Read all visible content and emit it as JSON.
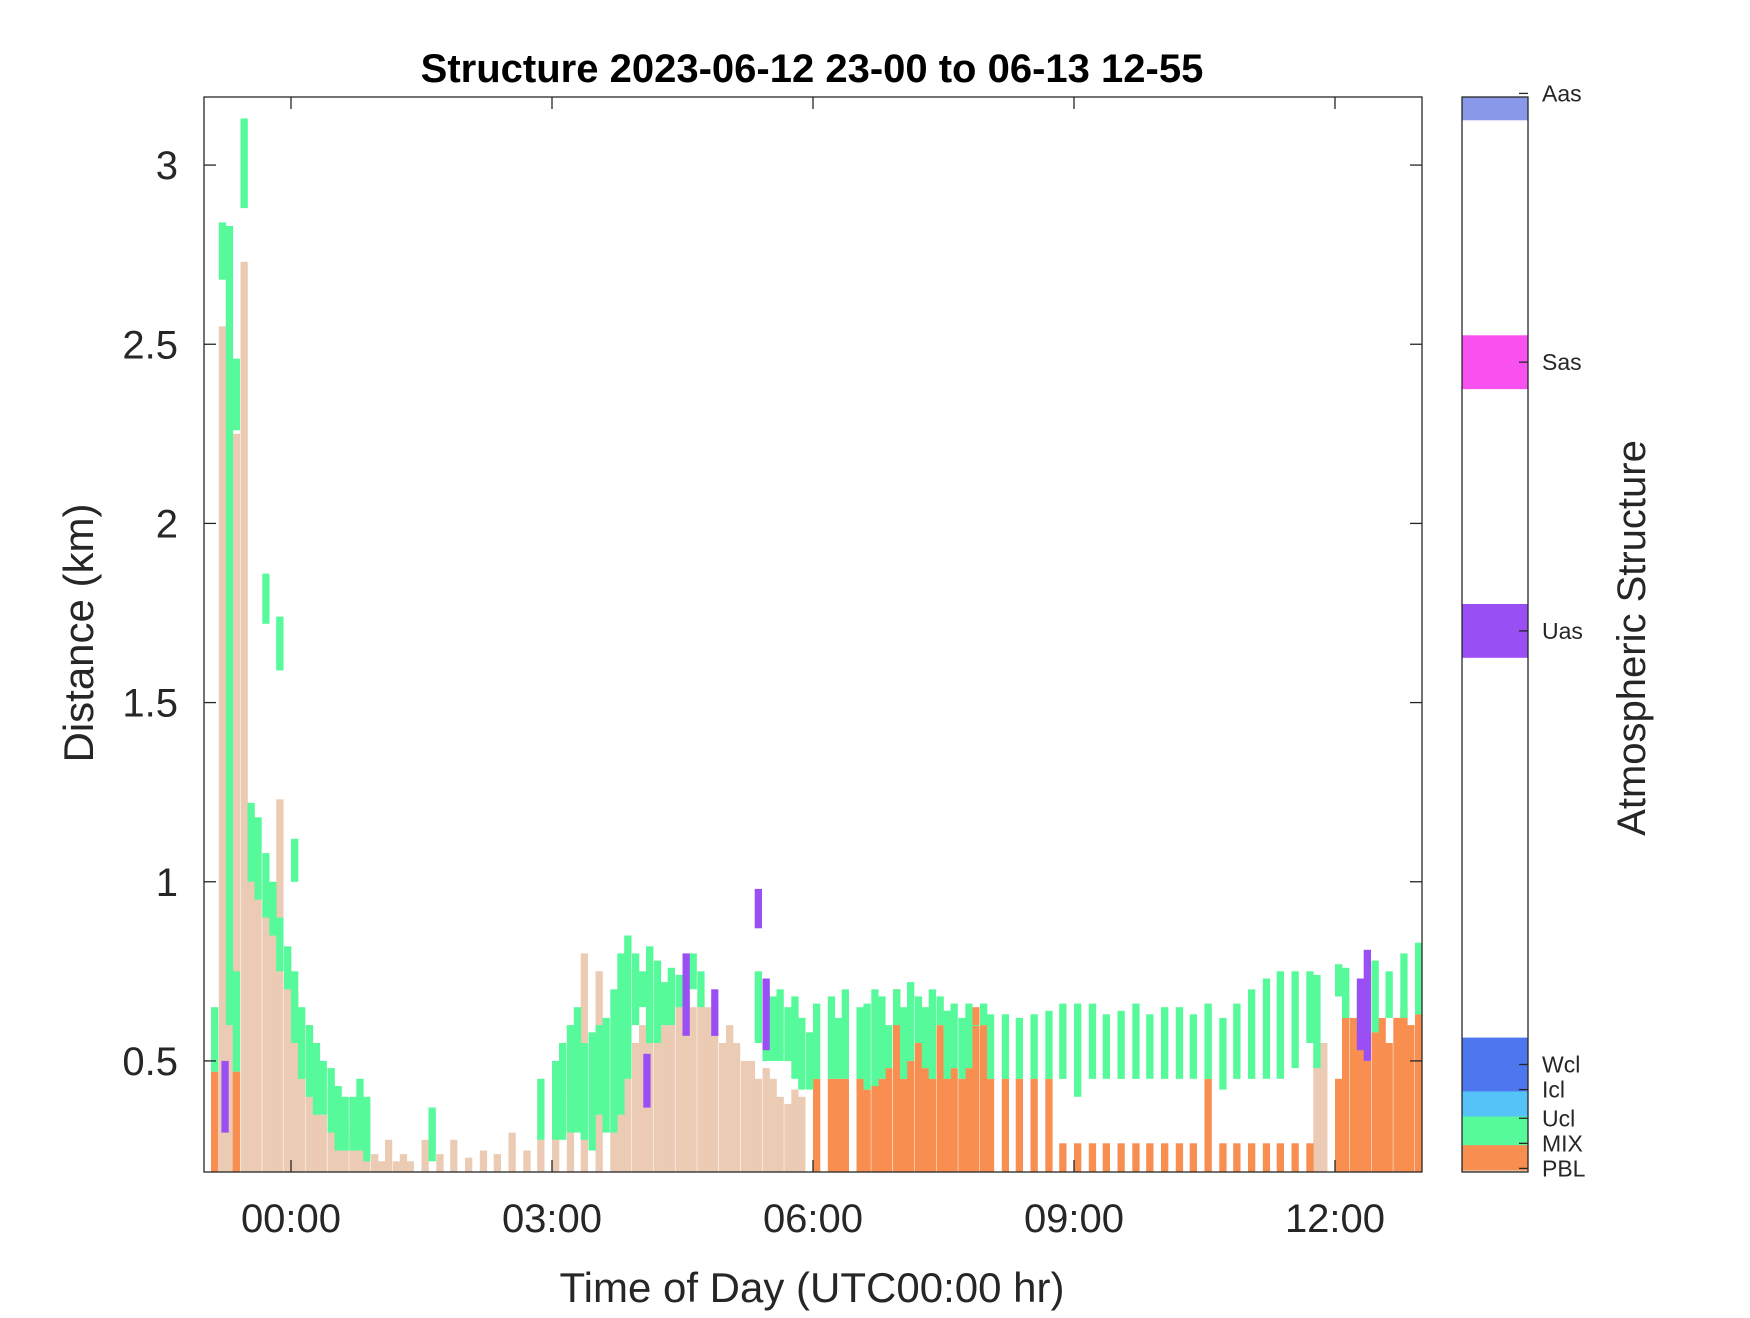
{
  "chart_data": {
    "type": "heatmap",
    "title": "Structure 2023-06-12 23-00 to 06-13 12-55",
    "xlabel": "Time of Day (UTC00:00 hr)",
    "ylabel": "Distance (km)",
    "colorbar_label": "Atmospheric Structure",
    "xlim": [
      -1.0,
      13.0
    ],
    "ylim": [
      0.19,
      3.19
    ],
    "x_unit": "hours from 00:00 UTC 2023-06-13",
    "x_ticks": [
      {
        "value": 0,
        "label": "00:00"
      },
      {
        "value": 3,
        "label": "03:00"
      },
      {
        "value": 6,
        "label": "06:00"
      },
      {
        "value": 9,
        "label": "09:00"
      },
      {
        "value": 12,
        "label": "12:00"
      }
    ],
    "y_ticks": [
      {
        "value": 0.5,
        "label": "0.5"
      },
      {
        "value": 1,
        "label": "1"
      },
      {
        "value": 1.5,
        "label": "1.5"
      },
      {
        "value": 2,
        "label": "2"
      },
      {
        "value": 2.5,
        "label": "2.5"
      },
      {
        "value": 3,
        "label": "3"
      }
    ],
    "categories": [
      {
        "code": "PBL",
        "color": "#ebcbb4",
        "level": 0.2
      },
      {
        "code": "MIX",
        "color": "#f98e51",
        "level": 0.27
      },
      {
        "code": "Ucl",
        "color": "#57fa9b",
        "level": 0.34
      },
      {
        "code": "Icl",
        "color": "#55c3f7",
        "level": 0.42
      },
      {
        "code": "Wcl",
        "color": "#4e76ee",
        "level": 0.49
      },
      {
        "code": "Uas",
        "color": "#9a4ff5",
        "level": 1.7
      },
      {
        "code": "Sas",
        "color": "#f851ef",
        "level": 2.45
      },
      {
        "code": "Aas",
        "color": "#8a98ea",
        "level": 3.2
      }
    ],
    "grid": false,
    "series": [
      {
        "name": "PBL",
        "x": [
          -0.92,
          -0.83,
          -0.75,
          -0.67,
          -0.58,
          -0.5,
          -0.42,
          -0.33,
          -0.25,
          -0.17,
          -0.08,
          0.0,
          0.08,
          0.17,
          0.25,
          0.33,
          0.42,
          0.5,
          0.58,
          0.67,
          0.75,
          0.83,
          0.92,
          1.0,
          1.08,
          1.17,
          1.25,
          1.33,
          1.5,
          1.67,
          1.83,
          2.0,
          2.17,
          2.33,
          2.5,
          2.67,
          2.83,
          3.0,
          3.17,
          3.33,
          3.5,
          3.67,
          3.75,
          3.83,
          3.92,
          4.0,
          4.08,
          4.17,
          4.25,
          4.33,
          4.42,
          4.5,
          4.58,
          4.67,
          4.75,
          4.83,
          4.92,
          5.0,
          5.08,
          5.17,
          5.25,
          5.33,
          5.42,
          5.5,
          5.58,
          5.67,
          5.75,
          5.83,
          11.75,
          11.83
        ],
        "bottom": [
          0.19,
          0.19,
          0.19,
          0.19,
          0.19,
          0.19,
          0.19,
          0.19,
          0.19,
          0.19,
          0.19,
          0.19,
          0.19,
          0.19,
          0.19,
          0.19,
          0.19,
          0.19,
          0.19,
          0.19,
          0.19,
          0.19,
          0.19,
          0.19,
          0.19,
          0.19,
          0.19,
          0.19,
          0.19,
          0.19,
          0.19,
          0.19,
          0.19,
          0.19,
          0.19,
          0.19,
          0.19,
          0.19,
          0.19,
          0.19,
          0.19,
          0.19,
          0.19,
          0.19,
          0.19,
          0.19,
          0.19,
          0.19,
          0.19,
          0.19,
          0.19,
          0.19,
          0.19,
          0.19,
          0.19,
          0.19,
          0.19,
          0.19,
          0.19,
          0.19,
          0.19,
          0.19,
          0.19,
          0.19,
          0.19,
          0.19,
          0.19,
          0.19,
          0.19,
          0.19
        ],
        "top": [
          0.6,
          2.55,
          0.95,
          2.25,
          2.73,
          1.15,
          1.0,
          0.95,
          0.9,
          1.23,
          0.8,
          0.7,
          0.55,
          0.6,
          0.5,
          0.35,
          0.45,
          0.3,
          0.33,
          0.3,
          0.28,
          0.25,
          0.24,
          0.22,
          0.28,
          0.22,
          0.24,
          0.22,
          0.28,
          0.24,
          0.28,
          0.23,
          0.25,
          0.24,
          0.3,
          0.25,
          0.3,
          0.35,
          0.4,
          0.8,
          0.75,
          0.6,
          0.65,
          0.55,
          0.55,
          0.6,
          0.7,
          0.55,
          0.6,
          0.65,
          0.7,
          0.7,
          0.65,
          0.68,
          0.65,
          0.68,
          0.55,
          0.6,
          0.55,
          0.5,
          0.5,
          0.45,
          0.48,
          0.45,
          0.4,
          0.38,
          0.42,
          0.4,
          0.55,
          0.55
        ]
      },
      {
        "name": "MIX",
        "x": [
          -0.92,
          -0.67,
          6.0,
          6.17,
          6.25,
          6.33,
          6.5,
          6.58,
          6.67,
          6.75,
          6.83,
          6.92,
          7.0,
          7.08,
          7.17,
          7.25,
          7.33,
          7.42,
          7.5,
          7.58,
          7.67,
          7.75,
          7.83,
          7.92,
          8.0,
          8.17,
          8.33,
          8.5,
          8.67,
          8.83,
          9.0,
          9.17,
          9.33,
          9.5,
          9.67,
          9.83,
          10.0,
          10.17,
          10.33,
          10.5,
          10.67,
          10.83,
          11.0,
          11.17,
          11.33,
          11.5,
          11.67,
          12.0,
          12.08,
          12.17,
          12.25,
          12.33,
          12.42,
          12.5,
          12.58,
          12.67,
          12.75,
          12.83,
          12.92
        ],
        "bottom": [
          0.19,
          0.19,
          0.19,
          0.19,
          0.19,
          0.19,
          0.19,
          0.19,
          0.19,
          0.19,
          0.19,
          0.19,
          0.19,
          0.19,
          0.19,
          0.19,
          0.19,
          0.19,
          0.19,
          0.19,
          0.19,
          0.19,
          0.19,
          0.19,
          0.19,
          0.19,
          0.19,
          0.19,
          0.19,
          0.19,
          0.19,
          0.19,
          0.19,
          0.19,
          0.19,
          0.19,
          0.19,
          0.19,
          0.19,
          0.19,
          0.19,
          0.19,
          0.19,
          0.19,
          0.19,
          0.19,
          0.19,
          0.19,
          0.19,
          0.19,
          0.19,
          0.19,
          0.19,
          0.19,
          0.19,
          0.19,
          0.19,
          0.19,
          0.19
        ],
        "top": [
          0.47,
          0.47,
          0.45,
          0.45,
          0.45,
          0.45,
          0.45,
          0.42,
          0.43,
          0.45,
          0.48,
          0.7,
          0.45,
          0.5,
          0.55,
          0.48,
          0.45,
          0.6,
          0.45,
          0.48,
          0.45,
          0.48,
          0.65,
          0.6,
          0.45,
          0.45,
          0.45,
          0.45,
          0.45,
          0.27,
          0.27,
          0.27,
          0.27,
          0.27,
          0.27,
          0.27,
          0.27,
          0.27,
          0.27,
          0.45,
          0.27,
          0.27,
          0.27,
          0.27,
          0.27,
          0.27,
          0.27,
          0.45,
          0.68,
          0.62,
          0.58,
          0.5,
          0.58,
          0.62,
          0.55,
          0.62,
          0.65,
          0.6,
          0.63
        ]
      },
      {
        "name": "Ucl",
        "x": [
          -0.92,
          -0.75,
          -0.67,
          -0.58,
          -0.5,
          -0.42,
          -0.33,
          -0.25,
          -0.17,
          -0.08,
          0.0,
          0.08,
          0.17,
          0.25,
          0.33,
          0.42,
          0.5,
          0.58,
          0.67,
          0.75,
          0.83,
          1.58,
          2.83,
          3.0,
          3.08,
          3.17,
          3.25,
          3.33,
          3.42,
          3.5,
          3.58,
          3.67,
          3.75,
          3.83,
          3.92,
          4.0,
          4.08,
          4.17,
          4.25,
          4.33,
          4.42,
          4.58,
          4.67,
          5.33,
          5.42,
          5.5,
          5.58,
          5.67,
          5.75,
          5.83,
          5.92,
          6.0,
          6.17,
          6.25,
          6.33,
          6.5,
          6.58,
          6.67,
          6.75,
          6.83,
          6.92,
          7.0,
          7.08,
          7.17,
          7.25,
          7.33,
          7.42,
          7.5,
          7.58,
          7.67,
          7.75,
          7.83,
          7.92,
          8.0,
          8.17,
          8.33,
          8.5,
          8.67,
          8.83,
          9.0,
          9.17,
          9.33,
          9.5,
          9.67,
          9.83,
          10.0,
          10.17,
          10.33,
          10.5,
          10.67,
          10.83,
          11.0,
          11.17,
          11.33,
          11.5,
          11.67,
          11.75,
          12.0,
          12.08,
          12.25,
          12.42,
          12.58,
          12.75,
          12.92
        ],
        "bottom": [
          0.47,
          0.6,
          0.47,
          2.88,
          1.0,
          0.95,
          0.9,
          0.85,
          0.75,
          0.7,
          0.55,
          0.45,
          0.4,
          0.35,
          0.35,
          0.3,
          0.25,
          0.25,
          0.25,
          0.25,
          0.22,
          0.22,
          0.28,
          0.28,
          0.28,
          0.3,
          0.3,
          0.28,
          0.25,
          0.35,
          0.3,
          0.3,
          0.35,
          0.45,
          0.6,
          0.65,
          0.55,
          0.55,
          0.6,
          0.6,
          0.65,
          0.7,
          0.65,
          0.55,
          0.5,
          0.5,
          0.5,
          0.5,
          0.45,
          0.42,
          0.42,
          0.45,
          0.45,
          0.45,
          0.45,
          0.45,
          0.42,
          0.43,
          0.45,
          0.48,
          0.6,
          0.45,
          0.5,
          0.55,
          0.48,
          0.45,
          0.6,
          0.45,
          0.48,
          0.45,
          0.48,
          0.65,
          0.6,
          0.45,
          0.45,
          0.45,
          0.45,
          0.45,
          0.45,
          0.4,
          0.45,
          0.45,
          0.45,
          0.45,
          0.45,
          0.45,
          0.45,
          0.45,
          0.45,
          0.42,
          0.45,
          0.45,
          0.45,
          0.45,
          0.48,
          0.55,
          0.48,
          0.68,
          0.62,
          0.58,
          0.58,
          0.62,
          0.62,
          0.63
        ],
        "top": [
          0.65,
          2.83,
          0.75,
          3.13,
          1.22,
          1.18,
          1.08,
          1.0,
          0.9,
          0.82,
          0.75,
          0.65,
          0.6,
          0.55,
          0.5,
          0.48,
          0.43,
          0.4,
          0.4,
          0.45,
          0.4,
          0.37,
          0.45,
          0.5,
          0.55,
          0.6,
          0.65,
          0.55,
          0.58,
          0.6,
          0.62,
          0.7,
          0.8,
          0.85,
          0.8,
          0.75,
          0.82,
          0.78,
          0.72,
          0.76,
          0.74,
          0.8,
          0.75,
          0.75,
          0.7,
          0.68,
          0.7,
          0.65,
          0.68,
          0.62,
          0.58,
          0.66,
          0.68,
          0.62,
          0.7,
          0.65,
          0.66,
          0.7,
          0.68,
          0.6,
          0.7,
          0.65,
          0.72,
          0.68,
          0.65,
          0.7,
          0.68,
          0.64,
          0.66,
          0.62,
          0.66,
          0.6,
          0.66,
          0.63,
          0.63,
          0.62,
          0.63,
          0.64,
          0.66,
          0.66,
          0.66,
          0.63,
          0.64,
          0.66,
          0.63,
          0.65,
          0.65,
          0.63,
          0.66,
          0.62,
          0.66,
          0.7,
          0.73,
          0.75,
          0.75,
          0.75,
          0.74,
          0.77,
          0.76,
          0.7,
          0.78,
          0.75,
          0.8,
          0.83
        ]
      },
      {
        "name": "Ucl (upper)",
        "x": [
          -0.83,
          -0.67,
          -0.33,
          -0.17,
          0.0
        ],
        "bottom": [
          2.68,
          2.26,
          1.72,
          1.59,
          1.0
        ],
        "top": [
          2.84,
          2.46,
          1.86,
          1.74,
          1.12
        ]
      },
      {
        "name": "Uas",
        "x": [
          -0.8,
          4.05,
          4.5,
          4.83,
          5.33,
          5.42,
          12.25,
          12.33
        ],
        "bottom": [
          0.3,
          0.37,
          0.57,
          0.57,
          0.87,
          0.53,
          0.53,
          0.5
        ],
        "top": [
          0.5,
          0.52,
          0.8,
          0.7,
          0.98,
          0.73,
          0.73,
          0.81
        ]
      }
    ]
  }
}
